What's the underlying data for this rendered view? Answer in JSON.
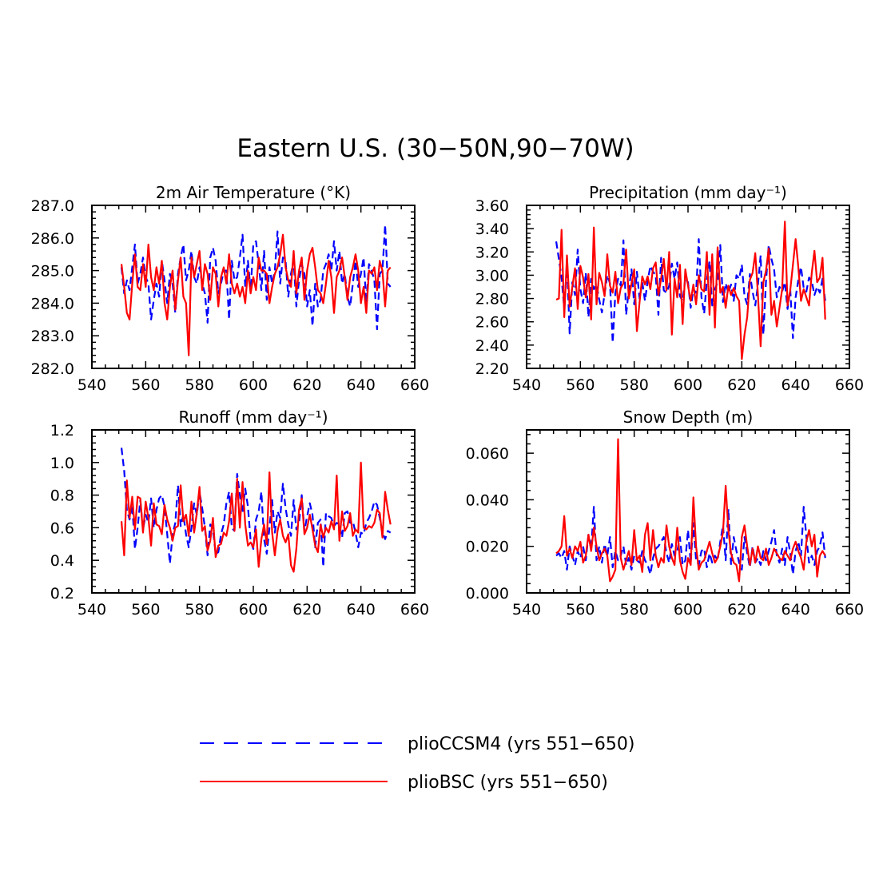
{
  "figure_title": "Eastern U.S. (30−50N,90−70W)",
  "legend": [
    {
      "label": "plioCCSM4 (yrs 551−650)",
      "color": "#0000ff",
      "style": "dashed"
    },
    {
      "label": "plioBSC (yrs 551−650)",
      "color": "#ff0000",
      "style": "solid"
    }
  ],
  "chart_data": [
    {
      "type": "line",
      "title": "2m Air Temperature (°K)",
      "xlim": [
        540,
        660
      ],
      "xticks": [
        540,
        560,
        580,
        600,
        620,
        640,
        660
      ],
      "xtick_labels": [
        "540",
        "560",
        "580",
        "600",
        "620",
        "640",
        "660"
      ],
      "ylim": [
        282.0,
        287.0
      ],
      "yticks": [
        282.0,
        283.0,
        284.0,
        285.0,
        286.0,
        287.0
      ],
      "ytick_labels": [
        "282.0",
        "283.0",
        "284.0",
        "285.0",
        "286.0",
        "287.0"
      ],
      "x_start": 551,
      "series": [
        {
          "name": "plioCCSM4 (yrs 551-650)",
          "color": "#0000ff",
          "dash": true,
          "values": [
            285.1,
            284.3,
            284.7,
            284.4,
            285.1,
            285.8,
            284.6,
            284.9,
            285.4,
            284.8,
            284.6,
            283.5,
            284.1,
            284.6,
            284.2,
            285.3,
            284.7,
            284.0,
            284.9,
            284.6,
            283.7,
            284.9,
            285.4,
            285.8,
            284.7,
            285.0,
            285.6,
            284.8,
            284.6,
            285.1,
            284.6,
            284.3,
            283.4,
            285.4,
            285.7,
            285.3,
            284.3,
            284.6,
            285.0,
            285.0,
            283.5,
            285.3,
            284.7,
            284.8,
            285.4,
            286.1,
            284.5,
            285.3,
            284.4,
            285.8,
            285.9,
            285.2,
            284.4,
            285.6,
            284.1,
            285.1,
            284.6,
            285.0,
            286.2,
            284.6,
            285.4,
            285.3,
            284.2,
            284.9,
            285.3,
            283.9,
            284.7,
            285.2,
            284.9,
            283.9,
            284.4,
            283.3,
            284.6,
            283.9,
            284.1,
            285.0,
            285.2,
            285.5,
            285.0,
            285.9,
            285.0,
            285.6,
            284.6,
            284.9,
            284.2,
            283.9,
            284.6,
            285.3,
            284.5,
            284.9,
            285.4,
            284.0,
            285.2,
            285.0,
            284.7,
            283.2,
            284.9,
            285.0,
            286.4,
            284.6,
            284.5
          ]
        },
        {
          "name": "plioBSC (yrs 551-650)",
          "color": "#ff0000",
          "dash": false,
          "values": [
            285.2,
            284.5,
            283.7,
            283.5,
            284.6,
            285.5,
            284.5,
            284.4,
            285.2,
            284.5,
            285.8,
            284.8,
            284.4,
            285.1,
            284.6,
            285.3,
            284.0,
            283.5,
            284.5,
            285.0,
            283.8,
            284.7,
            285.4,
            284.2,
            284.0,
            282.4,
            285.4,
            284.8,
            285.2,
            285.6,
            284.4,
            285.2,
            284.9,
            284.1,
            285.1,
            284.9,
            283.9,
            284.8,
            285.1,
            284.6,
            285.5,
            284.6,
            284.3,
            284.6,
            284.2,
            284.5,
            284.0,
            285.0,
            284.3,
            284.8,
            284.4,
            285.4,
            285.0,
            285.0,
            284.9,
            284.0,
            284.5,
            284.9,
            285.1,
            285.5,
            286.1,
            285.1,
            284.7,
            284.5,
            285.6,
            284.3,
            285.0,
            285.4,
            284.1,
            285.0,
            285.5,
            285.7,
            285.1,
            284.4,
            284.3,
            284.0,
            284.6,
            285.3,
            284.8,
            283.7,
            284.8,
            285.0,
            285.4,
            284.8,
            284.1,
            284.8,
            285.1,
            285.5,
            285.0,
            284.0,
            284.5,
            283.7,
            285.0,
            284.9,
            285.1,
            284.4,
            285.3,
            285.0,
            283.9,
            285.0,
            285.1
          ]
        }
      ]
    },
    {
      "type": "line",
      "title": "Precipitation (mm day⁻¹)",
      "xlim": [
        540,
        660
      ],
      "xticks": [
        540,
        560,
        580,
        600,
        620,
        640,
        660
      ],
      "xtick_labels": [
        "540",
        "560",
        "580",
        "600",
        "620",
        "640",
        "660"
      ],
      "ylim": [
        2.2,
        3.6
      ],
      "yticks": [
        2.2,
        2.4,
        2.6,
        2.8,
        3.0,
        3.2,
        3.4,
        3.6
      ],
      "ytick_labels": [
        "2.20",
        "2.40",
        "2.60",
        "2.80",
        "3.00",
        "3.20",
        "3.40",
        "3.60"
      ],
      "x_start": 551,
      "series": [
        {
          "name": "plioCCSM4 (yrs 551-650)",
          "color": "#0000ff",
          "dash": true,
          "values": [
            3.29,
            3.14,
            2.98,
            2.71,
            3.11,
            2.5,
            2.94,
            2.83,
            3.22,
            2.88,
            2.76,
            3.02,
            2.64,
            2.97,
            2.88,
            2.92,
            2.79,
            2.68,
            2.84,
            3.0,
            2.93,
            2.42,
            2.85,
            2.97,
            2.91,
            3.3,
            2.66,
            2.88,
            3.05,
            2.75,
            3.03,
            2.8,
            2.94,
            2.78,
            2.95,
            3.08,
            3.03,
            3.0,
            2.66,
            3.15,
            2.87,
            2.85,
            2.91,
            3.1,
            2.97,
            3.11,
            2.82,
            2.78,
            2.97,
            2.94,
            2.72,
            2.88,
            2.85,
            3.31,
            2.81,
            2.67,
            2.96,
            3.12,
            2.74,
            2.88,
            2.94,
            3.26,
            2.77,
            2.93,
            2.85,
            2.92,
            2.78,
            3.0,
            2.97,
            3.09,
            2.82,
            2.75,
            3.01,
            2.86,
            2.74,
            2.92,
            3.17,
            2.49,
            2.95,
            3.26,
            3.14,
            3.05,
            2.81,
            2.9,
            2.86,
            2.94,
            2.71,
            2.88,
            2.46,
            2.81,
            2.96,
            3.07,
            2.89,
            2.86,
            2.98,
            2.95,
            2.83,
            2.9,
            2.85,
            2.97,
            2.78
          ]
        },
        {
          "name": "plioBSC (yrs 551-650)",
          "color": "#ff0000",
          "dash": false,
          "values": [
            2.79,
            2.8,
            3.39,
            2.64,
            3.17,
            2.73,
            2.9,
            3.06,
            2.71,
            3.08,
            2.98,
            2.81,
            3.01,
            2.62,
            3.41,
            2.75,
            3.02,
            2.94,
            2.82,
            3.18,
            2.91,
            2.85,
            3.03,
            2.76,
            2.89,
            2.93,
            3.22,
            2.8,
            2.93,
            3.05,
            2.52,
            2.77,
            2.99,
            2.92,
            2.99,
            2.88,
            3.06,
            3.11,
            2.83,
            2.97,
            3.14,
            2.87,
            3.2,
            2.49,
            2.97,
            2.81,
            3.09,
            2.58,
            3.05,
            2.91,
            2.78,
            2.92,
            2.75,
            3.0,
            2.88,
            2.86,
            3.2,
            2.66,
            3.18,
            2.55,
            3.24,
            2.85,
            2.9,
            2.72,
            2.91,
            2.83,
            2.89,
            2.82,
            2.78,
            2.28,
            2.49,
            2.64,
            2.96,
            3.02,
            3.19,
            2.83,
            2.39,
            2.94,
            3.04,
            3.23,
            2.66,
            2.78,
            2.56,
            2.72,
            2.88,
            3.46,
            2.74,
            2.87,
            3.09,
            3.31,
            3.07,
            2.78,
            2.88,
            2.81,
            2.74,
            3.02,
            3.21,
            2.94,
            2.98,
            3.15,
            2.62
          ]
        }
      ]
    },
    {
      "type": "line",
      "title": "Runoff (mm day⁻¹)",
      "xlim": [
        540,
        660
      ],
      "xticks": [
        540,
        560,
        580,
        600,
        620,
        640,
        660
      ],
      "xtick_labels": [
        "540",
        "560",
        "580",
        "600",
        "620",
        "640",
        "660"
      ],
      "ylim": [
        0.2,
        1.2
      ],
      "yticks": [
        0.2,
        0.4,
        0.6,
        0.8,
        1.0,
        1.2
      ],
      "ytick_labels": [
        "0.2",
        "0.4",
        "0.6",
        "0.8",
        "1.0",
        "1.2"
      ],
      "x_start": 551,
      "series": [
        {
          "name": "plioCCSM4 (yrs 551-650)",
          "color": "#0000ff",
          "dash": true,
          "values": [
            1.09,
            0.95,
            0.71,
            0.65,
            0.74,
            0.47,
            0.6,
            0.77,
            0.59,
            0.68,
            0.63,
            0.78,
            0.6,
            0.71,
            0.78,
            0.8,
            0.73,
            0.56,
            0.38,
            0.56,
            0.63,
            0.86,
            0.61,
            0.68,
            0.56,
            0.48,
            0.6,
            0.75,
            0.68,
            0.82,
            0.72,
            0.6,
            0.43,
            0.62,
            0.59,
            0.44,
            0.45,
            0.56,
            0.62,
            0.75,
            0.82,
            0.6,
            0.58,
            0.93,
            0.8,
            0.69,
            0.84,
            0.73,
            0.52,
            0.47,
            0.65,
            0.7,
            0.82,
            0.53,
            0.44,
            0.6,
            0.77,
            0.57,
            0.7,
            0.66,
            0.87,
            0.72,
            0.62,
            0.55,
            0.77,
            0.59,
            0.63,
            0.8,
            0.58,
            0.67,
            0.75,
            0.68,
            0.48,
            0.63,
            0.65,
            0.36,
            0.69,
            0.67,
            0.66,
            0.61,
            0.63,
            0.62,
            0.54,
            0.69,
            0.7,
            0.63,
            0.64,
            0.57,
            0.48,
            0.57,
            0.56,
            0.63,
            0.66,
            0.7,
            0.76,
            0.74,
            0.66,
            0.57,
            0.53,
            0.58,
            0.57
          ]
        },
        {
          "name": "plioBSC (yrs 551-650)",
          "color": "#ff0000",
          "dash": false,
          "values": [
            0.64,
            0.43,
            0.89,
            0.66,
            0.79,
            0.59,
            0.79,
            0.78,
            0.57,
            0.76,
            0.66,
            0.49,
            0.75,
            0.62,
            0.61,
            0.56,
            0.74,
            0.65,
            0.6,
            0.52,
            0.6,
            0.61,
            0.86,
            0.64,
            0.68,
            0.55,
            0.76,
            0.57,
            0.69,
            0.85,
            0.58,
            0.61,
            0.46,
            0.52,
            0.66,
            0.42,
            0.49,
            0.5,
            0.57,
            0.55,
            0.64,
            0.81,
            0.58,
            0.9,
            0.6,
            0.88,
            0.62,
            0.49,
            0.51,
            0.48,
            0.59,
            0.36,
            0.53,
            0.62,
            0.5,
            0.94,
            0.57,
            0.43,
            0.58,
            0.65,
            0.55,
            0.51,
            0.56,
            0.37,
            0.33,
            0.47,
            0.71,
            0.78,
            0.56,
            0.6,
            0.68,
            0.59,
            0.49,
            0.45,
            0.62,
            0.54,
            0.6,
            0.57,
            0.64,
            0.59,
            0.92,
            0.52,
            0.7,
            0.58,
            0.61,
            0.69,
            0.55,
            0.59,
            0.57,
            1.0,
            0.6,
            0.59,
            0.61,
            0.6,
            0.63,
            0.71,
            0.69,
            0.54,
            0.82,
            0.71,
            0.62
          ]
        }
      ]
    },
    {
      "type": "line",
      "title": "Snow Depth (m)",
      "xlim": [
        540,
        660
      ],
      "xticks": [
        540,
        560,
        580,
        600,
        620,
        640,
        660
      ],
      "xtick_labels": [
        "540",
        "560",
        "580",
        "600",
        "620",
        "640",
        "660"
      ],
      "ylim": [
        0.0,
        0.07
      ],
      "yticks": [
        0.0,
        0.02,
        0.04,
        0.06
      ],
      "ytick_labels": [
        "0.000",
        "0.020",
        "0.040",
        "0.060"
      ],
      "x_start": 551,
      "series": [
        {
          "name": "plioCCSM4 (yrs 551-650)",
          "color": "#0000ff",
          "dash": true,
          "values": [
            0.016,
            0.017,
            0.015,
            0.018,
            0.01,
            0.02,
            0.016,
            0.012,
            0.018,
            0.015,
            0.02,
            0.014,
            0.025,
            0.019,
            0.037,
            0.014,
            0.02,
            0.013,
            0.021,
            0.016,
            0.024,
            0.011,
            0.018,
            0.014,
            0.016,
            0.02,
            0.012,
            0.015,
            0.01,
            0.016,
            0.014,
            0.013,
            0.018,
            0.014,
            0.012,
            0.008,
            0.015,
            0.019,
            0.02,
            0.022,
            0.024,
            0.017,
            0.013,
            0.021,
            0.016,
            0.018,
            0.024,
            0.012,
            0.014,
            0.027,
            0.013,
            0.03,
            0.014,
            0.012,
            0.018,
            0.019,
            0.011,
            0.017,
            0.013,
            0.016,
            0.014,
            0.022,
            0.029,
            0.014,
            0.036,
            0.012,
            0.024,
            0.018,
            0.013,
            0.01,
            0.024,
            0.017,
            0.011,
            0.02,
            0.013,
            0.015,
            0.012,
            0.018,
            0.014,
            0.018,
            0.022,
            0.027,
            0.016,
            0.013,
            0.019,
            0.012,
            0.024,
            0.017,
            0.008,
            0.018,
            0.022,
            0.016,
            0.037,
            0.024,
            0.013,
            0.016,
            0.012,
            0.018,
            0.02,
            0.026,
            0.015
          ]
        },
        {
          "name": "plioBSC (yrs 551-650)",
          "color": "#ff0000",
          "dash": false,
          "values": [
            0.017,
            0.018,
            0.02,
            0.033,
            0.016,
            0.019,
            0.015,
            0.02,
            0.018,
            0.022,
            0.013,
            0.016,
            0.025,
            0.018,
            0.028,
            0.02,
            0.014,
            0.017,
            0.019,
            0.016,
            0.005,
            0.007,
            0.01,
            0.066,
            0.015,
            0.01,
            0.014,
            0.018,
            0.012,
            0.027,
            0.014,
            0.016,
            0.009,
            0.025,
            0.03,
            0.014,
            0.027,
            0.016,
            0.011,
            0.015,
            0.013,
            0.029,
            0.02,
            0.015,
            0.012,
            0.028,
            0.014,
            0.009,
            0.006,
            0.015,
            0.012,
            0.041,
            0.02,
            0.01,
            0.013,
            0.014,
            0.018,
            0.022,
            0.017,
            0.013,
            0.015,
            0.02,
            0.026,
            0.046,
            0.027,
            0.017,
            0.013,
            0.012,
            0.005,
            0.024,
            0.029,
            0.02,
            0.012,
            0.019,
            0.013,
            0.02,
            0.015,
            0.014,
            0.019,
            0.012,
            0.015,
            0.019,
            0.017,
            0.015,
            0.014,
            0.018,
            0.016,
            0.014,
            0.019,
            0.022,
            0.018,
            0.015,
            0.01,
            0.022,
            0.027,
            0.02,
            0.025,
            0.007,
            0.016,
            0.018,
            0.016
          ]
        }
      ]
    }
  ]
}
